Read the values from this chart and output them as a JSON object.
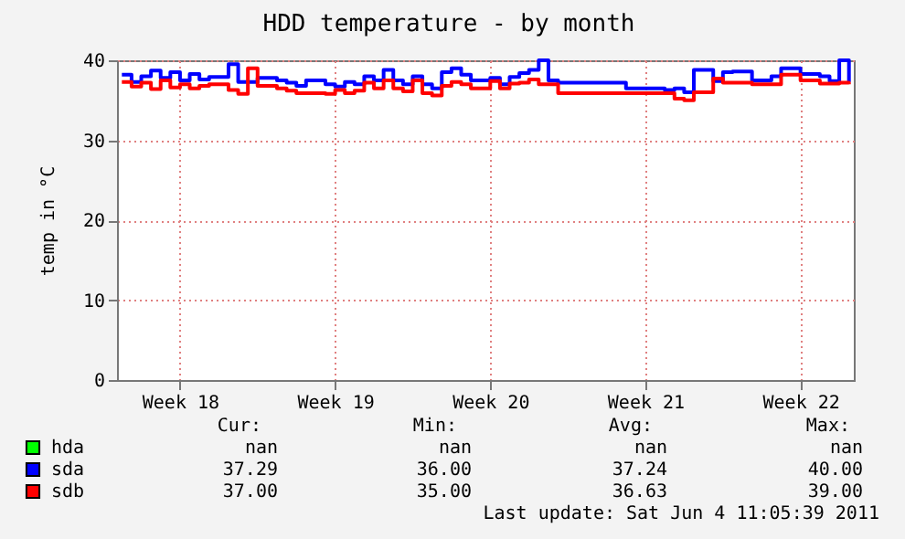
{
  "chart_data": {
    "type": "step",
    "title": "HDD temperature - by month",
    "ylabel": "temp in °C",
    "categories": [
      null,
      null,
      null,
      null,
      null,
      null,
      "Week 18",
      null,
      null,
      null,
      null,
      null,
      null,
      null,
      null,
      null,
      null,
      null,
      null,
      null,
      null,
      null,
      "Week 19",
      null,
      null,
      null,
      null,
      null,
      null,
      null,
      null,
      null,
      null,
      null,
      null,
      null,
      null,
      null,
      "Week 20",
      null,
      null,
      null,
      null,
      null,
      null,
      null,
      null,
      null,
      null,
      null,
      null,
      null,
      null,
      null,
      "Week 21",
      null,
      null,
      null,
      null,
      null,
      null,
      null,
      null,
      null,
      null,
      null,
      null,
      null,
      null,
      null,
      "Week 22",
      null,
      null,
      null,
      null,
      null
    ],
    "series": [
      {
        "name": "hda",
        "color": "#00ff00",
        "values": [
          null,
          null,
          null,
          null,
          null,
          null,
          null,
          null,
          null,
          null,
          null,
          null,
          null,
          null,
          null,
          null,
          null,
          null,
          null,
          null,
          null,
          null,
          null,
          null,
          null,
          null,
          null,
          null,
          null,
          null,
          null,
          null,
          null,
          null,
          null,
          null,
          null,
          null,
          null,
          null,
          null,
          null,
          null,
          null,
          null,
          null,
          null,
          null,
          null,
          null,
          null,
          null,
          null,
          null,
          null,
          null,
          null,
          null,
          null,
          null,
          null,
          null,
          null,
          null,
          null,
          null,
          null,
          null,
          null,
          null,
          null,
          null,
          null,
          null,
          null,
          null
        ]
      },
      {
        "name": "sda",
        "color": "#0000ff",
        "values": [
          38.2,
          37.3,
          38,
          38.7,
          37.8,
          38.5,
          37.5,
          38.3,
          37.6,
          37.9,
          37.9,
          39.5,
          37.3,
          37.3,
          37.8,
          37.8,
          37.5,
          37.2,
          36.8,
          37.5,
          37.5,
          37,
          36.7,
          37.3,
          37,
          38,
          37.5,
          38.8,
          37.5,
          37,
          38,
          37,
          36.5,
          38.5,
          39,
          38.2,
          37.5,
          37.5,
          37.8,
          37,
          37.9,
          38.4,
          38.8,
          40,
          37.5,
          37.2,
          37.2,
          37.2,
          37.2,
          37.2,
          37.2,
          37.2,
          36.5,
          36.5,
          36.5,
          36.5,
          36.3,
          36.5,
          36.0,
          38.8,
          38.8,
          37.4,
          38.5,
          38.6,
          38.6,
          37.5,
          37.5,
          38,
          39,
          39,
          38.3,
          38.3,
          38,
          37.4,
          40,
          37.3
        ]
      },
      {
        "name": "sdb",
        "color": "#ff0000",
        "values": [
          37.3,
          36.7,
          37.2,
          36.4,
          37.5,
          36.6,
          37,
          36.5,
          36.8,
          37,
          37,
          36.3,
          35.8,
          39,
          36.8,
          36.8,
          36.5,
          36.2,
          35.9,
          35.9,
          35.9,
          35.8,
          36.3,
          35.9,
          36.2,
          37.2,
          36.5,
          37.5,
          36.5,
          36.1,
          37.5,
          35.9,
          35.6,
          36.8,
          37.3,
          37,
          36.5,
          36.5,
          37.4,
          36.5,
          37.1,
          37.2,
          37.6,
          37,
          37,
          35.9,
          35.9,
          35.9,
          35.9,
          35.9,
          35.9,
          35.9,
          35.9,
          35.9,
          35.9,
          35.9,
          35.9,
          35.2,
          35.0,
          36,
          36,
          37.7,
          37.2,
          37.2,
          37.2,
          37,
          37,
          37,
          38.2,
          38.2,
          37.5,
          37.5,
          37.1,
          37.1,
          37.2,
          37
        ]
      }
    ],
    "ylim": [
      0,
      40
    ],
    "yticks": [
      0,
      10,
      20,
      30,
      40
    ],
    "grid": true,
    "legend": "bottom",
    "annotations": [
      "Cur:",
      "Min:",
      "Avg:",
      "Max:",
      "nan",
      "nan",
      "nan",
      "nan",
      "37.29",
      "36.00",
      "37.24",
      "40.00",
      "37.00",
      "35.00",
      "36.63",
      "39.00",
      "Last update: Sat Jun  4 11:05:39 2011"
    ]
  }
}
